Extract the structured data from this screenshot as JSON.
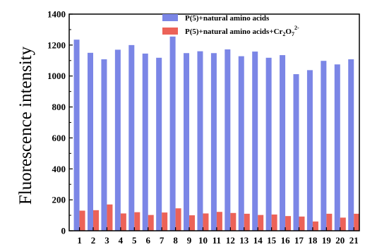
{
  "chart_data": {
    "type": "bar",
    "title": "",
    "xlabel": "",
    "ylabel": "Fluorescence intensity",
    "ylim": [
      0,
      1400
    ],
    "yticks": [
      0,
      200,
      400,
      600,
      800,
      1000,
      1200,
      1400
    ],
    "grid": false,
    "legend_position": "top-right",
    "categories": [
      "1",
      "2",
      "3",
      "4",
      "5",
      "6",
      "7",
      "8",
      "9",
      "10",
      "11",
      "12",
      "13",
      "14",
      "15",
      "16",
      "17",
      "18",
      "19",
      "20",
      "21"
    ],
    "series": [
      {
        "name": "P(5)+natural amino acids",
        "color": "#7b86e6",
        "values": [
          1235,
          1150,
          1108,
          1170,
          1200,
          1145,
          1118,
          1255,
          1148,
          1160,
          1148,
          1172,
          1128,
          1158,
          1118,
          1135,
          1012,
          1038,
          1098,
          1075,
          1108
        ]
      },
      {
        "name_parts": [
          "P(5)+natural amino acids+Cr",
          "2",
          "O",
          "7",
          "2-"
        ],
        "color": "#ec6258",
        "values": [
          130,
          133,
          170,
          112,
          120,
          102,
          118,
          145,
          100,
          112,
          122,
          115,
          110,
          102,
          105,
          95,
          92,
          60,
          110,
          85,
          110
        ]
      }
    ]
  }
}
